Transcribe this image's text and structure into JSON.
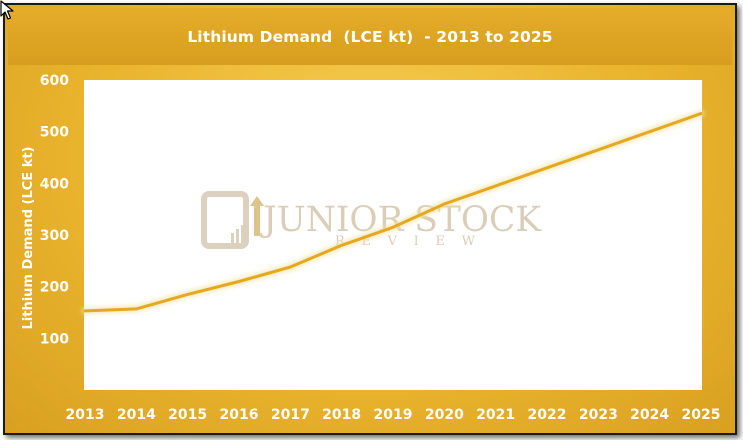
{
  "chart_data": {
    "type": "line",
    "title": "Lithium Demand  (LCE kt)  - 2013 to 2025",
    "xlabel": "",
    "ylabel": "Lithium Demand  (LCE kt)",
    "categories": [
      "2013",
      "2014",
      "2015",
      "2016",
      "2017",
      "2018",
      "2019",
      "2020",
      "2021",
      "2022",
      "2023",
      "2024",
      "2025"
    ],
    "series": [
      {
        "values": [
          153,
          157,
          185,
          210,
          238,
          280,
          315,
          360,
          395,
          430,
          465,
          500,
          535
        ],
        "color": "#e5a91f"
      }
    ],
    "ylim": [
      0,
      600
    ],
    "yticks": [
      100,
      200,
      300,
      400,
      500,
      600
    ],
    "grid": false,
    "legend": "none"
  },
  "watermark": {
    "line1": "JUNIOR STOCK",
    "line2": "REVIEW",
    "color": "#d4c6ad"
  },
  "colors": {
    "frame_gold": "#e9b42e",
    "title_bar": "#d79d1e",
    "plot_background": "#ffffff",
    "line": "#e5a91f",
    "text": "#ffffff"
  },
  "cursor_icon": "mouse-pointer-icon"
}
